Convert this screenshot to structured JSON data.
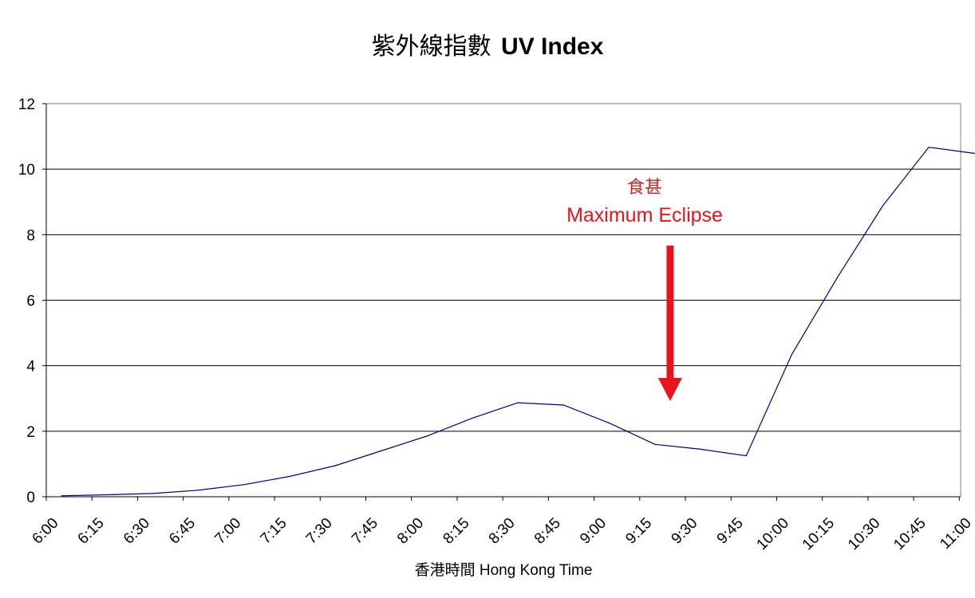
{
  "chart_data": {
    "type": "line",
    "title_zh": "紫外線指數",
    "title_en": "UV Index",
    "xlabel": "香港時間 Hong Kong Time",
    "ylabel": "",
    "ylim": [
      0,
      12
    ],
    "yticks": [
      0,
      2,
      4,
      6,
      8,
      10,
      12
    ],
    "grid": "horizontal",
    "x_tick_labels": [
      "6:00",
      "6:15",
      "6:30",
      "6:45",
      "7:00",
      "7:15",
      "7:30",
      "7:45",
      "8:00",
      "8:15",
      "8:30",
      "8:45",
      "9:00",
      "9:15",
      "9:30",
      "9:45",
      "10:00",
      "10:15",
      "10:30",
      "10:45",
      "11:00"
    ],
    "series": [
      {
        "color": "#000080",
        "points": [
          {
            "x": "6:05",
            "y": 0.03
          },
          {
            "x": "6:20",
            "y": 0.06
          },
          {
            "x": "6:35",
            "y": 0.1
          },
          {
            "x": "6:50",
            "y": 0.2
          },
          {
            "x": "7:05",
            "y": 0.37
          },
          {
            "x": "7:20",
            "y": 0.62
          },
          {
            "x": "7:35",
            "y": 0.95
          },
          {
            "x": "7:50",
            "y": 1.4
          },
          {
            "x": "8:05",
            "y": 1.85
          },
          {
            "x": "8:20",
            "y": 2.4
          },
          {
            "x": "8:35",
            "y": 2.87
          },
          {
            "x": "8:50",
            "y": 2.8
          },
          {
            "x": "9:05",
            "y": 2.25
          },
          {
            "x": "9:20",
            "y": 1.6
          },
          {
            "x": "9:35",
            "y": 1.45
          },
          {
            "x": "9:50",
            "y": 1.25
          },
          {
            "x": "10:05",
            "y": 4.35
          },
          {
            "x": "10:20",
            "y": 6.7
          },
          {
            "x": "10:35",
            "y": 8.9
          },
          {
            "x": "10:50",
            "y": 10.67
          },
          {
            "x": "11:05",
            "y": 10.48
          }
        ]
      }
    ],
    "annotations": [
      {
        "label_zh": "食甚",
        "label_en": "Maximum Eclipse",
        "x": "9:25",
        "color": "#e8141c"
      }
    ]
  }
}
